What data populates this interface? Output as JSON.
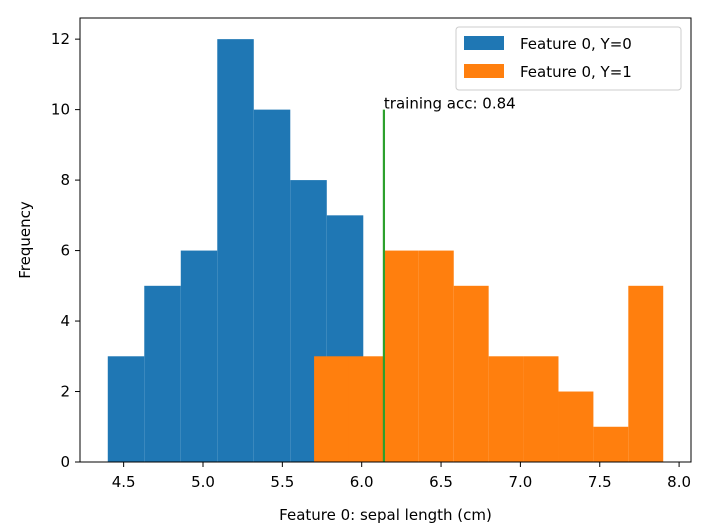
{
  "chart_data": {
    "type": "histogram",
    "xlabel": "Feature 0: sepal length (cm)",
    "ylabel": "Frequency",
    "xlim": [
      4.225,
      8.075
    ],
    "ylim": [
      0,
      12.6
    ],
    "xticks": [
      "4.5",
      "5.0",
      "5.5",
      "6.0",
      "6.5",
      "7.0",
      "7.5",
      "8.0"
    ],
    "yticks": [
      "0",
      "2",
      "4",
      "6",
      "8",
      "10",
      "12"
    ],
    "grid": false,
    "legend_position": "top-right",
    "series": [
      {
        "name": "Feature 0, Y=0",
        "color": "#1f77b4",
        "bin_edges": [
          4.4,
          4.63,
          4.86,
          5.09,
          5.32,
          5.55,
          5.78,
          6.01
        ],
        "counts": [
          3,
          5,
          6,
          12,
          10,
          8,
          7
        ]
      },
      {
        "name": "Feature 0, Y=1",
        "color": "#ff7f0e",
        "bin_edges": [
          5.7,
          5.92,
          6.14,
          6.36,
          6.58,
          6.8,
          7.02,
          7.24,
          7.46,
          7.68,
          7.9
        ],
        "counts": [
          3,
          3,
          6,
          6,
          5,
          3,
          3,
          2,
          1,
          5
        ]
      }
    ],
    "threshold": {
      "x": 6.14,
      "y_top": 10,
      "color": "#2ca02c",
      "label": "training acc: 0.84"
    }
  }
}
